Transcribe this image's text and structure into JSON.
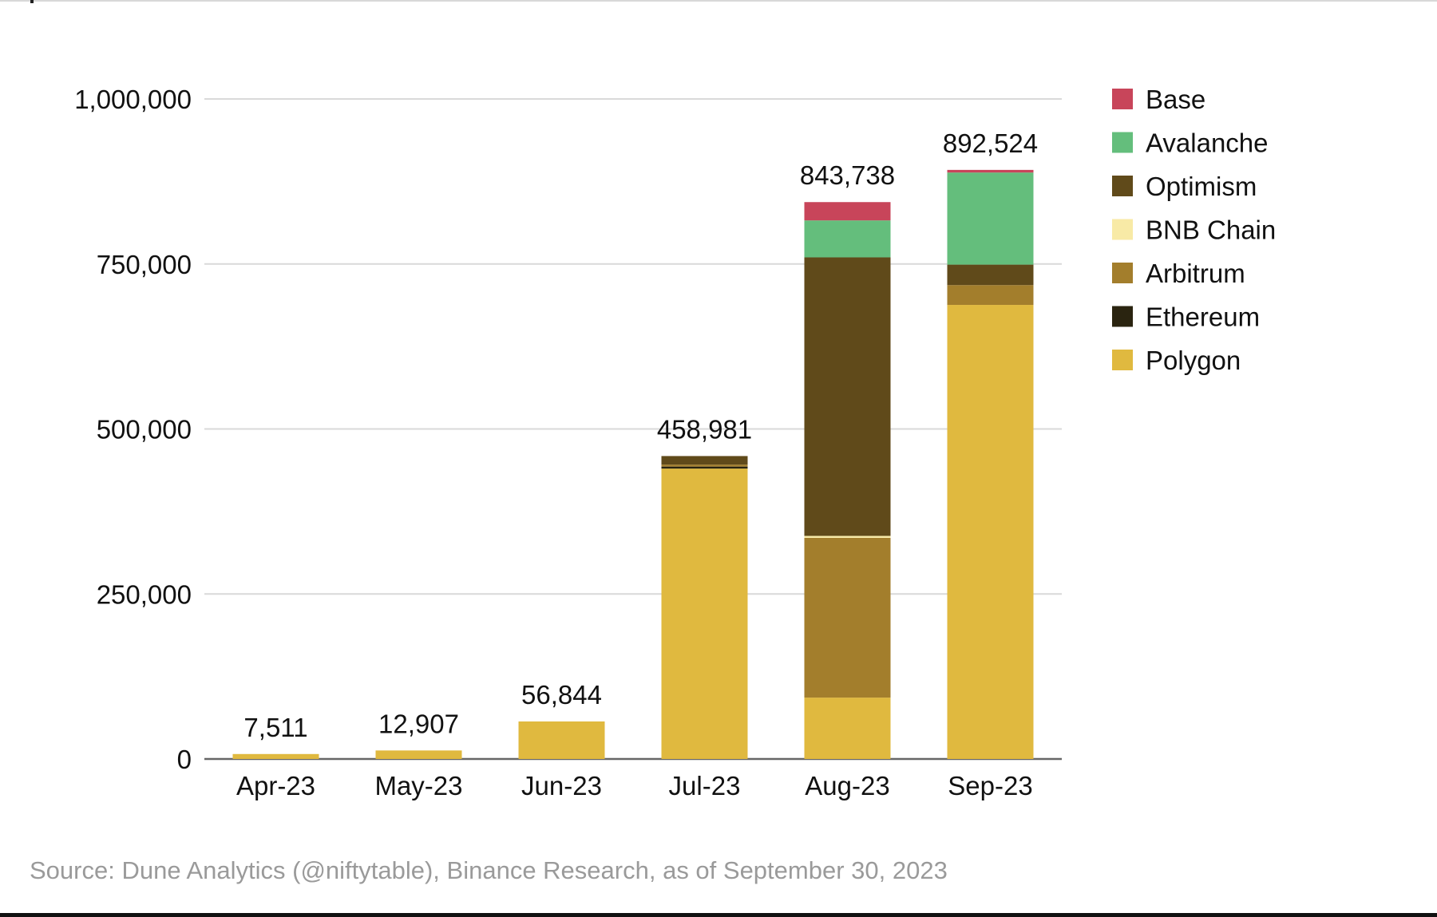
{
  "chart_data": {
    "type": "bar",
    "stacked": true,
    "title": "",
    "xlabel": "",
    "ylabel": "",
    "ylim": [
      0,
      1000000
    ],
    "yticks": [
      0,
      250000,
      500000,
      750000,
      1000000
    ],
    "ytick_labels": [
      "0",
      "250,000",
      "500,000",
      "750,000",
      "1,000,000"
    ],
    "grid": true,
    "legend_position": "right",
    "categories": [
      "Apr-23",
      "May-23",
      "Jun-23",
      "Jul-23",
      "Aug-23",
      "Sep-23"
    ],
    "totals": [
      7511,
      12907,
      56844,
      458981,
      843738,
      892524
    ],
    "total_labels": [
      "7,511",
      "12,907",
      "56,844",
      "458,981",
      "843,738",
      "892,524"
    ],
    "series": [
      {
        "name": "Polygon",
        "color": "#e0b93f",
        "values": [
          7511,
          12907,
          56844,
          440000,
          93000,
          688000
        ]
      },
      {
        "name": "Ethereum",
        "color": "#2a2410",
        "values": [
          0,
          0,
          0,
          3000,
          0,
          0
        ]
      },
      {
        "name": "Arbitrum",
        "color": "#a37e2c",
        "values": [
          0,
          0,
          0,
          3000,
          242000,
          30000
        ]
      },
      {
        "name": "BNB Chain",
        "color": "#f8eaa6",
        "values": [
          0,
          0,
          0,
          0,
          3000,
          0
        ]
      },
      {
        "name": "Optimism",
        "color": "#604a1a",
        "values": [
          0,
          0,
          0,
          12981,
          422000,
          31000
        ]
      },
      {
        "name": "Avalanche",
        "color": "#64be7c",
        "values": [
          0,
          0,
          0,
          0,
          56000,
          139524
        ]
      },
      {
        "name": "Base",
        "color": "#c8455a",
        "values": [
          0,
          0,
          0,
          0,
          27738,
          4000
        ]
      }
    ],
    "legend_order": [
      "Base",
      "Avalanche",
      "Optimism",
      "BNB Chain",
      "Arbitrum",
      "Ethereum",
      "Polygon"
    ]
  },
  "source_note": "Source: Dune Analytics (@niftytable), Binance Research, as of September 30, 2023"
}
